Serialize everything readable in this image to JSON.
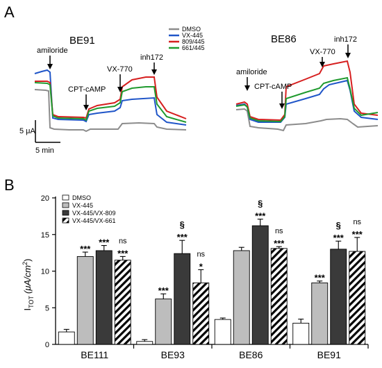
{
  "panel_a": {
    "letter": "A",
    "left_title": "BE91",
    "right_title": "BE86",
    "legend": [
      {
        "label": "DMSO",
        "color": "#8c8c8c"
      },
      {
        "label": "VX-445",
        "color": "#1f55c8"
      },
      {
        "label": "809/445",
        "color": "#d61f1f"
      },
      {
        "label": "661/445",
        "color": "#1f9a2e"
      }
    ],
    "left_annotations": [
      "amiloride",
      "CPT-cAMP",
      "VX-770",
      "inh172"
    ],
    "right_annotations": [
      "amiloride",
      "CPT-cAMP",
      "VX-770",
      "inh172"
    ],
    "scale_y": "5 μA",
    "scale_x": "5 min"
  },
  "panel_b": {
    "letter": "B",
    "ylabel_main": "I",
    "ylabel_sub": "TOT",
    "ylabel_unit": "(μA/cm",
    "ylabel_sup": "2",
    "ylabel_close": ")",
    "legend": [
      {
        "label": "DMSO",
        "fill": "#ffffff"
      },
      {
        "label": "VX-445",
        "fill": "#bdbdbd"
      },
      {
        "label": "VX-445/VX-809",
        "fill": "#3a3a3a"
      },
      {
        "label": "VX-445/VX-661",
        "fill": "hatch"
      }
    ]
  },
  "chart_data": {
    "type": "bar",
    "categories": [
      "BE111",
      "BE93",
      "BE86",
      "BE91"
    ],
    "ylim": [
      0,
      20
    ],
    "yticks": [
      0,
      5,
      10,
      15,
      20
    ],
    "series": [
      {
        "name": "DMSO",
        "values": [
          1.7,
          0.4,
          3.4,
          2.9
        ],
        "errors": [
          0.35,
          0.25,
          0.2,
          0.55
        ],
        "labels": [
          "",
          "",
          "",
          ""
        ]
      },
      {
        "name": "VX-445",
        "values": [
          12.0,
          6.2,
          12.8,
          8.4
        ],
        "errors": [
          0.6,
          0.7,
          0.45,
          0.25
        ],
        "labels": [
          "***",
          "***",
          "",
          "***"
        ]
      },
      {
        "name": "VX-445/VX-809",
        "values": [
          12.8,
          12.4,
          16.2,
          13.0
        ],
        "errors": [
          0.7,
          1.8,
          0.9,
          1.1
        ],
        "labels": [
          "***",
          "§\n***",
          "§\n***",
          "§\n***"
        ]
      },
      {
        "name": "VX-445/VX-661",
        "values": [
          11.5,
          8.4,
          13.1,
          12.7
        ],
        "errors": [
          0.5,
          1.8,
          0.25,
          1.9
        ],
        "labels": [
          "ns\n***",
          "ns\n*",
          "ns\n***",
          "ns\n***"
        ]
      }
    ]
  }
}
